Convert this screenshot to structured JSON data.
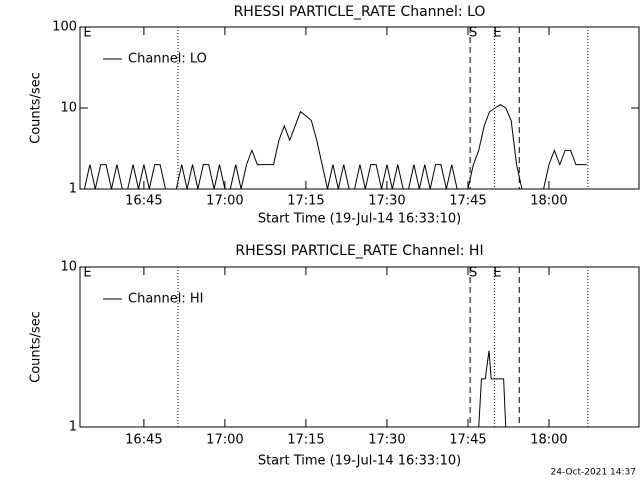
{
  "chart_data": [
    {
      "type": "line",
      "title": "RHESSI PARTICLE_RATE Channel: LO",
      "xlabel": "Start Time (19-Jul-14 16:33:10)",
      "ylabel": "Counts/sec",
      "xlim": [
        993.17,
        1096.67
      ],
      "xticks": [
        {
          "value": 1005,
          "label": "16:45"
        },
        {
          "value": 1020,
          "label": "17:00"
        },
        {
          "value": 1035,
          "label": "17:15"
        },
        {
          "value": 1050,
          "label": "17:30"
        },
        {
          "value": 1065,
          "label": "17:45"
        },
        {
          "value": 1080,
          "label": "18:00"
        }
      ],
      "ylim": [
        1,
        100
      ],
      "yticks": [
        1,
        10,
        100
      ],
      "ylog": true,
      "legend": "upper left",
      "vlines": [
        {
          "x": 1011.3,
          "style": "dotted"
        },
        {
          "x": 1065.4,
          "style": "dashed"
        },
        {
          "x": 1069.9,
          "style": "dotted"
        },
        {
          "x": 1074.5,
          "style": "dashed"
        },
        {
          "x": 1087.2,
          "style": "dotted"
        }
      ],
      "annotations": [
        {
          "text": "E",
          "x": 994
        },
        {
          "text": "S",
          "x": 1065.4
        },
        {
          "text": "E",
          "x": 1069.9
        }
      ],
      "series": [
        {
          "name": "Channel: LO",
          "color": "#000000",
          "x": [
            994,
            995,
            996,
            997,
            998,
            999,
            1000,
            1001,
            1002,
            1003,
            1004,
            1005,
            1006,
            1007,
            1008,
            1009,
            1010,
            1011,
            1012,
            1013,
            1014,
            1015,
            1016,
            1017,
            1018,
            1019,
            1020,
            1021,
            1022,
            1023,
            1024,
            1025,
            1026,
            1027,
            1028,
            1029,
            1030,
            1031,
            1032,
            1033,
            1034,
            1035,
            1036,
            1037,
            1038,
            1039,
            1040,
            1041,
            1042,
            1043,
            1044,
            1045,
            1046,
            1047,
            1048,
            1049,
            1050,
            1051,
            1052,
            1053,
            1054,
            1055,
            1056,
            1057,
            1058,
            1059,
            1060,
            1061,
            1062,
            1063,
            1064,
            1065,
            1066,
            1067,
            1068,
            1069,
            1070,
            1071,
            1072,
            1073,
            1074,
            1075,
            1076,
            1077,
            1078,
            1079,
            1080,
            1081,
            1082,
            1083,
            1084,
            1085,
            1086,
            1087
          ],
          "values": [
            1,
            2,
            1,
            2,
            2,
            1,
            2,
            1,
            1,
            2,
            1,
            2,
            1,
            2,
            2,
            1,
            1,
            1,
            2,
            1,
            2,
            1,
            2,
            2,
            1,
            2,
            1,
            1,
            2,
            1,
            2,
            3,
            2,
            2,
            2,
            2,
            4,
            6,
            4,
            6,
            9,
            8,
            7,
            4,
            2,
            1,
            2,
            1,
            2,
            1,
            1,
            2,
            1,
            2,
            2,
            1,
            2,
            1,
            2,
            1,
            1,
            2,
            1,
            2,
            1,
            2,
            2,
            1,
            2,
            1,
            1,
            1,
            2,
            3,
            6,
            9,
            10,
            11,
            10,
            7,
            2,
            1,
            1,
            1,
            1,
            1,
            2,
            3,
            2,
            3,
            3,
            2,
            2,
            2
          ]
        }
      ]
    },
    {
      "type": "line",
      "title": "RHESSI PARTICLE_RATE Channel: HI",
      "xlabel": "Start Time (19-Jul-14 16:33:10)",
      "ylabel": "Counts/sec",
      "xlim": [
        993.17,
        1096.67
      ],
      "xticks": [
        {
          "value": 1005,
          "label": "16:45"
        },
        {
          "value": 1020,
          "label": "17:00"
        },
        {
          "value": 1035,
          "label": "17:15"
        },
        {
          "value": 1050,
          "label": "17:30"
        },
        {
          "value": 1065,
          "label": "17:45"
        },
        {
          "value": 1080,
          "label": "18:00"
        }
      ],
      "ylim": [
        1,
        10
      ],
      "yticks": [
        1,
        10
      ],
      "ylog": true,
      "legend": "upper left",
      "vlines": [
        {
          "x": 1011.3,
          "style": "dotted"
        },
        {
          "x": 1065.4,
          "style": "dashed"
        },
        {
          "x": 1069.9,
          "style": "dotted"
        },
        {
          "x": 1074.5,
          "style": "dashed"
        },
        {
          "x": 1087.2,
          "style": "dotted"
        }
      ],
      "annotations": [
        {
          "text": "E",
          "x": 994
        },
        {
          "text": "S",
          "x": 1065.4
        },
        {
          "text": "E",
          "x": 1069.9
        }
      ],
      "series": [
        {
          "name": "Channel: HI",
          "color": "#000000",
          "x": [
            1067,
            1067.5,
            1068.2,
            1068.9,
            1069.3,
            1070,
            1071,
            1071.6,
            1072
          ],
          "values": [
            1,
            2,
            2,
            3,
            2,
            2,
            2,
            2,
            1
          ]
        }
      ]
    }
  ],
  "footer": "24-Oct-2021 14:37"
}
